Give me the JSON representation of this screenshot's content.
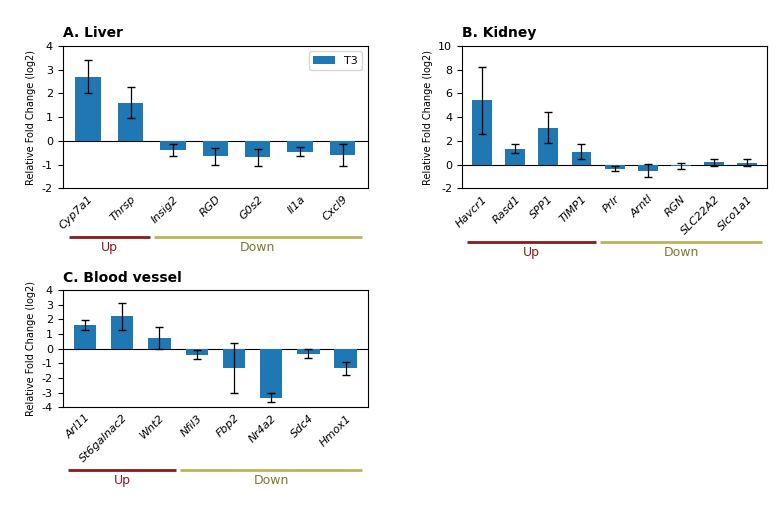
{
  "chart_data": [
    {
      "type": "bar",
      "title": "A. Liver",
      "categories": [
        "Cyp7a1",
        "Thrsp",
        "Insig2",
        "RGD",
        "G0s2",
        "Il1a",
        "Cxcl9"
      ],
      "series": [
        {
          "name": "T3",
          "values": [
            2.7,
            1.6,
            -0.4,
            -0.65,
            -0.7,
            -0.45,
            -0.6
          ],
          "errors": [
            0.7,
            0.65,
            0.25,
            0.35,
            0.35,
            0.2,
            0.45
          ]
        }
      ],
      "ylim": [
        -2.0,
        4.0
      ],
      "yticks": [
        -2,
        -1,
        0,
        1,
        2,
        3,
        4
      ],
      "ylabel": "Relative Fold Change (log2)",
      "legend": "upper right",
      "annotations": [
        {
          "text": "Up",
          "color": "#8b1a1a",
          "line_color": "#8b1a1a",
          "from": "Cyp7a1",
          "to": "Thrsp"
        },
        {
          "text": "Down",
          "color": "#7a7a30",
          "line_color": "#b5b55a",
          "from": "Insig2",
          "to": "Cxcl9"
        }
      ]
    },
    {
      "type": "bar",
      "title": "B. Kidney",
      "categories": [
        "Havcr1",
        "Rasd1",
        "SPP1",
        "TIMP1",
        "Prlr",
        "Arntl",
        "RGN",
        "SLC22A2",
        "Slco1a1"
      ],
      "series": [
        {
          "values": [
            5.4,
            1.35,
            3.1,
            1.1,
            -0.35,
            -0.5,
            -0.1,
            0.2,
            0.15
          ],
          "errors": [
            2.8,
            0.4,
            1.3,
            0.65,
            0.2,
            0.55,
            0.25,
            0.3,
            0.3
          ]
        }
      ],
      "ylim": [
        -2.0,
        10.0
      ],
      "yticks": [
        -2,
        0,
        2,
        4,
        6,
        8,
        10
      ],
      "ylabel": "Relative Fold Change (log2)",
      "annotations": [
        {
          "text": "Up",
          "color": "#8b1a1a",
          "line_color": "#8b1a1a",
          "from": "Havcr1",
          "to": "TIMP1"
        },
        {
          "text": "Down",
          "color": "#7a7a30",
          "line_color": "#b5b55a",
          "from": "Prlr",
          "to": "Slco1a1"
        }
      ]
    },
    {
      "type": "bar",
      "title": "C. Blood vessel",
      "categories": [
        "Arl11",
        "St6galnac2",
        "Wnt2",
        "Nfil3",
        "Fbp2",
        "Nr4a2",
        "Sdc4",
        "Hmox1"
      ],
      "series": [
        {
          "values": [
            1.6,
            2.2,
            0.7,
            -0.4,
            -1.3,
            -3.35,
            -0.35,
            -1.35
          ],
          "errors": [
            0.35,
            0.9,
            0.75,
            0.3,
            1.7,
            0.3,
            0.3,
            0.45
          ]
        }
      ],
      "ylim": [
        -4.0,
        4.0
      ],
      "yticks": [
        -4,
        -3,
        -2,
        -1,
        0,
        1,
        2,
        3,
        4
      ],
      "ylabel": "Relative Fold Change (log2)",
      "annotations": [
        {
          "text": "Up",
          "color": "#8b1a1a",
          "line_color": "#8b1a1a",
          "from": "Arl11",
          "to": "Wnt2"
        },
        {
          "text": "Down",
          "color": "#7a7a30",
          "line_color": "#b5b55a",
          "from": "Nfil3",
          "to": "Hmox1"
        }
      ]
    }
  ]
}
